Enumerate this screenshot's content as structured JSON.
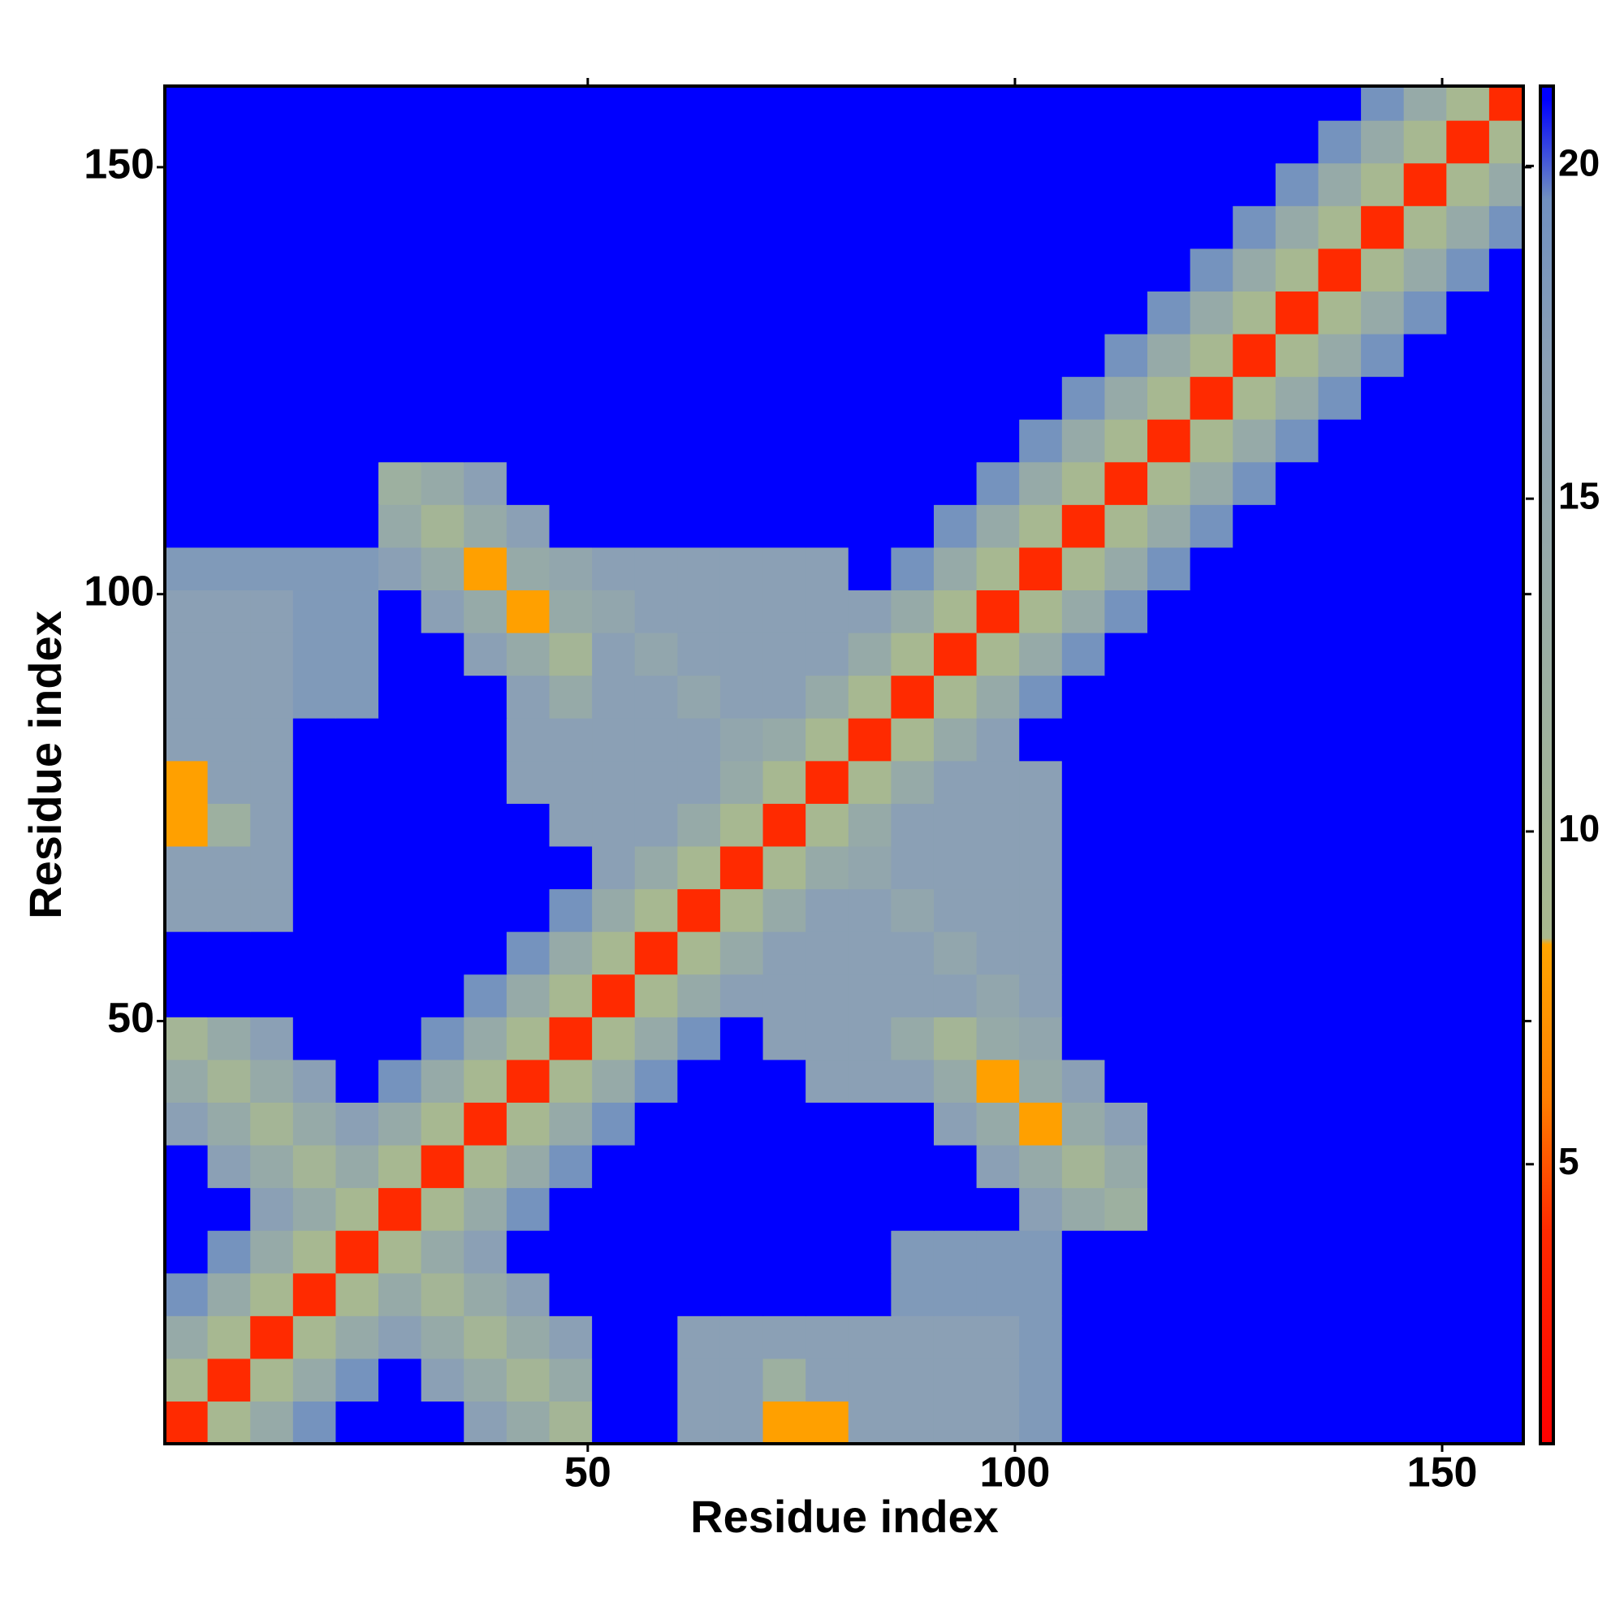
{
  "chart_data": {
    "type": "heatmap",
    "xlabel": "Residue index",
    "ylabel": "Residue index",
    "xlim": [
      0.5,
      159.5
    ],
    "ylim": [
      0.5,
      159.5
    ],
    "xticks": [
      50,
      100,
      150
    ],
    "yticks": [
      50,
      100,
      150
    ],
    "x": [
      3,
      8,
      13,
      18,
      23,
      28,
      33,
      38,
      43,
      48,
      53,
      58,
      63,
      68,
      73,
      78,
      83,
      88,
      93,
      98,
      103,
      108,
      113,
      118,
      123,
      128,
      133,
      138,
      143,
      148,
      153,
      158
    ],
    "y": [
      3,
      8,
      13,
      18,
      23,
      28,
      33,
      38,
      43,
      48,
      53,
      58,
      63,
      68,
      73,
      78,
      83,
      88,
      93,
      98,
      103,
      108,
      113,
      118,
      123,
      128,
      133,
      138,
      143,
      148,
      153,
      158
    ],
    "z": [
      [
        4,
        9,
        14,
        19,
        21,
        21,
        21,
        17,
        14,
        10,
        21,
        21,
        17,
        17,
        8,
        8,
        17,
        17,
        17,
        17,
        18,
        21,
        21,
        21,
        21,
        21,
        21,
        21,
        21,
        21,
        21,
        21
      ],
      [
        9,
        4,
        9,
        14,
        19,
        21,
        17,
        14,
        10,
        14,
        21,
        21,
        17,
        17,
        12,
        17,
        17,
        17,
        17,
        17,
        18,
        21,
        21,
        21,
        21,
        21,
        21,
        21,
        21,
        21,
        21,
        21
      ],
      [
        14,
        9,
        4,
        9,
        14,
        17,
        14,
        10,
        14,
        17,
        21,
        21,
        17,
        17,
        17,
        17,
        17,
        17,
        17,
        17,
        18,
        21,
        21,
        21,
        21,
        21,
        21,
        21,
        21,
        21,
        21,
        21
      ],
      [
        19,
        14,
        9,
        4,
        9,
        14,
        10,
        14,
        17,
        21,
        21,
        21,
        21,
        21,
        21,
        21,
        21,
        18,
        18,
        18,
        18,
        21,
        21,
        21,
        21,
        21,
        21,
        21,
        21,
        21,
        21,
        21
      ],
      [
        21,
        19,
        14,
        9,
        4,
        9,
        14,
        17,
        21,
        21,
        21,
        21,
        21,
        21,
        21,
        21,
        21,
        18,
        18,
        18,
        18,
        21,
        21,
        21,
        21,
        21,
        21,
        21,
        21,
        21,
        21,
        21
      ],
      [
        21,
        21,
        17,
        14,
        9,
        4,
        9,
        14,
        19,
        21,
        21,
        21,
        21,
        21,
        21,
        21,
        21,
        21,
        21,
        21,
        17,
        14,
        12,
        21,
        21,
        21,
        21,
        21,
        21,
        21,
        21,
        21
      ],
      [
        21,
        17,
        14,
        10,
        14,
        9,
        4,
        9,
        14,
        19,
        21,
        21,
        21,
        21,
        21,
        21,
        21,
        21,
        21,
        17,
        14,
        10,
        14,
        21,
        21,
        21,
        21,
        21,
        21,
        21,
        21,
        21
      ],
      [
        17,
        14,
        10,
        14,
        17,
        14,
        9,
        4,
        9,
        14,
        19,
        21,
        21,
        21,
        21,
        21,
        21,
        21,
        17,
        14,
        8,
        14,
        17,
        21,
        21,
        21,
        21,
        21,
        21,
        21,
        21,
        21
      ],
      [
        14,
        10,
        14,
        17,
        21,
        19,
        14,
        9,
        4,
        9,
        14,
        19,
        21,
        21,
        21,
        17,
        17,
        17,
        14,
        8,
        14,
        17,
        21,
        21,
        21,
        21,
        21,
        21,
        21,
        21,
        21,
        21
      ],
      [
        10,
        14,
        17,
        21,
        21,
        21,
        19,
        14,
        9,
        4,
        9,
        14,
        19,
        21,
        17,
        17,
        17,
        14,
        10,
        14,
        15,
        21,
        21,
        21,
        21,
        21,
        21,
        21,
        21,
        21,
        21,
        21
      ],
      [
        21,
        21,
        21,
        21,
        21,
        21,
        21,
        19,
        14,
        9,
        4,
        9,
        14,
        17,
        17,
        17,
        17,
        17,
        17,
        15,
        17,
        21,
        21,
        21,
        21,
        21,
        21,
        21,
        21,
        21,
        21,
        21
      ],
      [
        21,
        21,
        21,
        21,
        21,
        21,
        21,
        21,
        19,
        14,
        9,
        4,
        9,
        14,
        17,
        17,
        17,
        17,
        15,
        17,
        17,
        21,
        21,
        21,
        21,
        21,
        21,
        21,
        21,
        21,
        21,
        21
      ],
      [
        17,
        17,
        17,
        21,
        21,
        21,
        21,
        21,
        21,
        19,
        14,
        9,
        4,
        9,
        14,
        17,
        17,
        15,
        17,
        17,
        17,
        21,
        21,
        21,
        21,
        21,
        21,
        21,
        21,
        21,
        21,
        21
      ],
      [
        17,
        17,
        17,
        21,
        21,
        21,
        21,
        21,
        21,
        21,
        17,
        14,
        9,
        4,
        9,
        14,
        15,
        17,
        17,
        17,
        17,
        21,
        21,
        21,
        21,
        21,
        21,
        21,
        21,
        21,
        21,
        21
      ],
      [
        8,
        12,
        17,
        21,
        21,
        21,
        21,
        21,
        21,
        17,
        17,
        17,
        14,
        9,
        4,
        9,
        14,
        17,
        17,
        17,
        17,
        21,
        21,
        21,
        21,
        21,
        21,
        21,
        21,
        21,
        21,
        21
      ],
      [
        8,
        17,
        17,
        21,
        21,
        21,
        21,
        21,
        17,
        17,
        17,
        17,
        17,
        14,
        9,
        4,
        9,
        14,
        17,
        17,
        17,
        21,
        21,
        21,
        21,
        21,
        21,
        21,
        21,
        21,
        21,
        21
      ],
      [
        17,
        17,
        17,
        21,
        21,
        21,
        21,
        21,
        17,
        17,
        17,
        17,
        17,
        15,
        14,
        9,
        4,
        9,
        14,
        17,
        21,
        21,
        21,
        21,
        21,
        21,
        21,
        21,
        21,
        21,
        21,
        21
      ],
      [
        17,
        17,
        17,
        18,
        18,
        21,
        21,
        21,
        17,
        14,
        17,
        17,
        15,
        17,
        17,
        14,
        9,
        4,
        9,
        14,
        19,
        21,
        21,
        21,
        21,
        21,
        21,
        21,
        21,
        21,
        21,
        21
      ],
      [
        17,
        17,
        17,
        18,
        18,
        21,
        21,
        17,
        14,
        10,
        17,
        15,
        17,
        17,
        17,
        17,
        14,
        9,
        4,
        9,
        14,
        19,
        21,
        21,
        21,
        21,
        21,
        21,
        21,
        21,
        21,
        21
      ],
      [
        17,
        17,
        17,
        18,
        18,
        21,
        17,
        14,
        8,
        14,
        15,
        17,
        17,
        17,
        17,
        17,
        17,
        14,
        9,
        4,
        9,
        14,
        19,
        21,
        21,
        21,
        21,
        21,
        21,
        21,
        21,
        21
      ],
      [
        18,
        18,
        18,
        18,
        18,
        17,
        14,
        8,
        14,
        15,
        17,
        17,
        17,
        17,
        17,
        17,
        21,
        19,
        14,
        9,
        4,
        9,
        14,
        19,
        21,
        21,
        21,
        21,
        21,
        21,
        21,
        21
      ],
      [
        21,
        21,
        21,
        21,
        21,
        14,
        10,
        14,
        17,
        21,
        21,
        21,
        21,
        21,
        21,
        21,
        21,
        21,
        19,
        14,
        9,
        4,
        9,
        14,
        19,
        21,
        21,
        21,
        21,
        21,
        21,
        21
      ],
      [
        21,
        21,
        21,
        21,
        21,
        12,
        14,
        17,
        21,
        21,
        21,
        21,
        21,
        21,
        21,
        21,
        21,
        21,
        21,
        19,
        14,
        9,
        4,
        9,
        14,
        19,
        21,
        21,
        21,
        21,
        21,
        21
      ],
      [
        21,
        21,
        21,
        21,
        21,
        21,
        21,
        21,
        21,
        21,
        21,
        21,
        21,
        21,
        21,
        21,
        21,
        21,
        21,
        21,
        19,
        14,
        9,
        4,
        9,
        14,
        19,
        21,
        21,
        21,
        21,
        21
      ],
      [
        21,
        21,
        21,
        21,
        21,
        21,
        21,
        21,
        21,
        21,
        21,
        21,
        21,
        21,
        21,
        21,
        21,
        21,
        21,
        21,
        21,
        19,
        14,
        9,
        4,
        9,
        14,
        19,
        21,
        21,
        21,
        21
      ],
      [
        21,
        21,
        21,
        21,
        21,
        21,
        21,
        21,
        21,
        21,
        21,
        21,
        21,
        21,
        21,
        21,
        21,
        21,
        21,
        21,
        21,
        21,
        19,
        14,
        9,
        4,
        9,
        14,
        19,
        21,
        21,
        21
      ],
      [
        21,
        21,
        21,
        21,
        21,
        21,
        21,
        21,
        21,
        21,
        21,
        21,
        21,
        21,
        21,
        21,
        21,
        21,
        21,
        21,
        21,
        21,
        21,
        19,
        14,
        9,
        4,
        9,
        14,
        19,
        21,
        21
      ],
      [
        21,
        21,
        21,
        21,
        21,
        21,
        21,
        21,
        21,
        21,
        21,
        21,
        21,
        21,
        21,
        21,
        21,
        21,
        21,
        21,
        21,
        21,
        21,
        21,
        19,
        14,
        9,
        4,
        9,
        14,
        19,
        21
      ],
      [
        21,
        21,
        21,
        21,
        21,
        21,
        21,
        21,
        21,
        21,
        21,
        21,
        21,
        21,
        21,
        21,
        21,
        21,
        21,
        21,
        21,
        21,
        21,
        21,
        21,
        19,
        14,
        9,
        4,
        9,
        14,
        19
      ],
      [
        21,
        21,
        21,
        21,
        21,
        21,
        21,
        21,
        21,
        21,
        21,
        21,
        21,
        21,
        21,
        21,
        21,
        21,
        21,
        21,
        21,
        21,
        21,
        21,
        21,
        21,
        19,
        14,
        9,
        4,
        9,
        14
      ],
      [
        21,
        21,
        21,
        21,
        21,
        21,
        21,
        21,
        21,
        21,
        21,
        21,
        21,
        21,
        21,
        21,
        21,
        21,
        21,
        21,
        21,
        21,
        21,
        21,
        21,
        21,
        21,
        19,
        14,
        9,
        4,
        9
      ],
      [
        21,
        21,
        21,
        21,
        21,
        21,
        21,
        21,
        21,
        21,
        21,
        21,
        21,
        21,
        21,
        21,
        21,
        21,
        21,
        21,
        21,
        21,
        21,
        21,
        21,
        21,
        21,
        21,
        19,
        14,
        9,
        4
      ]
    ],
    "colorscale": [
      [
        0.8,
        "#ff0000"
      ],
      [
        4,
        "#ff2a00"
      ],
      [
        6,
        "#ff7f00"
      ],
      [
        8.3,
        "#ffa500"
      ],
      [
        8.4,
        "#a9b98e"
      ],
      [
        12,
        "#9db0a0"
      ],
      [
        17,
        "#8ba0b5"
      ],
      [
        19.5,
        "#7090c0"
      ],
      [
        21,
        "#0000ff"
      ]
    ],
    "colorbar": {
      "lim": [
        0.8,
        21.2
      ],
      "ticks": [
        5,
        10,
        15,
        20
      ]
    }
  }
}
